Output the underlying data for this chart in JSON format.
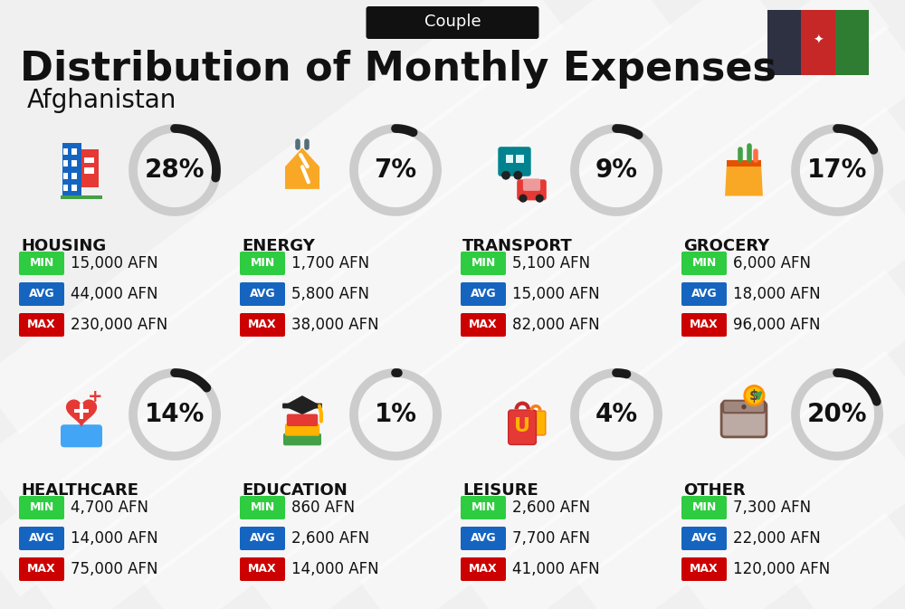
{
  "title": "Distribution of Monthly Expenses",
  "subtitle": "Afghanistan",
  "category_label": "Couple",
  "bg_color": "#f0f0f0",
  "stripe_color": "#ffffff",
  "categories": [
    {
      "name": "HOUSING",
      "pct": 28,
      "min": "15,000 AFN",
      "avg": "44,000 AFN",
      "max": "230,000 AFN",
      "row": 0,
      "col": 0,
      "icon_color": "#1565c0"
    },
    {
      "name": "ENERGY",
      "pct": 7,
      "min": "1,700 AFN",
      "avg": "5,800 AFN",
      "max": "38,000 AFN",
      "row": 0,
      "col": 1,
      "icon_color": "#f9a825"
    },
    {
      "name": "TRANSPORT",
      "pct": 9,
      "min": "5,100 AFN",
      "avg": "15,000 AFN",
      "max": "82,000 AFN",
      "row": 0,
      "col": 2,
      "icon_color": "#00838f"
    },
    {
      "name": "GROCERY",
      "pct": 17,
      "min": "6,000 AFN",
      "avg": "18,000 AFN",
      "max": "96,000 AFN",
      "row": 0,
      "col": 3,
      "icon_color": "#e65100"
    },
    {
      "name": "HEALTHCARE",
      "pct": 14,
      "min": "4,700 AFN",
      "avg": "14,000 AFN",
      "max": "75,000 AFN",
      "row": 1,
      "col": 0,
      "icon_color": "#c62828"
    },
    {
      "name": "EDUCATION",
      "pct": 1,
      "min": "860 AFN",
      "avg": "2,600 AFN",
      "max": "14,000 AFN",
      "row": 1,
      "col": 1,
      "icon_color": "#2e7d32"
    },
    {
      "name": "LEISURE",
      "pct": 4,
      "min": "2,600 AFN",
      "avg": "7,700 AFN",
      "max": "41,000 AFN",
      "row": 1,
      "col": 2,
      "icon_color": "#e65100"
    },
    {
      "name": "OTHER",
      "pct": 20,
      "min": "7,300 AFN",
      "avg": "22,000 AFN",
      "max": "120,000 AFN",
      "row": 1,
      "col": 3,
      "icon_color": "#795548"
    }
  ],
  "min_color": "#2ecc40",
  "avg_color": "#1565c0",
  "max_color": "#cc0000",
  "text_color": "#111111",
  "arc_dark": "#1a1a1a",
  "arc_light": "#cccccc",
  "title_fontsize": 32,
  "subtitle_fontsize": 20,
  "cat_fontsize": 13,
  "pct_fontsize": 20,
  "val_fontsize": 12,
  "badge_fontsize": 9
}
